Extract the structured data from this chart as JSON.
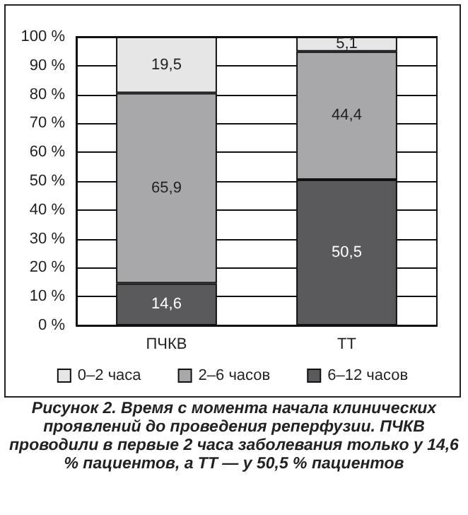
{
  "chart_data": {
    "type": "bar",
    "stacked": true,
    "categories": [
      "ПЧКВ",
      "ТТ"
    ],
    "series": [
      {
        "name": "6–12 часов",
        "color": "#5a5a5c",
        "values": [
          14.6,
          50.5
        ],
        "value_labels": [
          "14,6",
          "50,5"
        ]
      },
      {
        "name": "2–6 часов",
        "color": "#a8a8aa",
        "values": [
          65.9,
          44.4
        ],
        "value_labels": [
          "65,9",
          "44,4"
        ]
      },
      {
        "name": "0–2 часа",
        "color": "#e6e6e6",
        "values": [
          19.5,
          5.1
        ],
        "value_labels": [
          "19,5",
          "5,1"
        ]
      }
    ],
    "ylim": [
      0,
      100
    ],
    "yticks": [
      {
        "value": 0,
        "label": "0 %"
      },
      {
        "value": 10,
        "label": "10 %"
      },
      {
        "value": 20,
        "label": "20 %"
      },
      {
        "value": 30,
        "label": "30 %"
      },
      {
        "value": 40,
        "label": "40 %"
      },
      {
        "value": 50,
        "label": "50 %"
      },
      {
        "value": 60,
        "label": "60 %"
      },
      {
        "value": 70,
        "label": "70 %"
      },
      {
        "value": 80,
        "label": "80 %"
      },
      {
        "value": 90,
        "label": "90 %"
      },
      {
        "value": 100,
        "label": "100 %"
      }
    ],
    "grid": "y",
    "legend": "bottom",
    "annotations": [
      "Рисунок 2. Время с момента начала клинических проявлений до проведения реперфузии. ПЧКВ проводили в первые 2 часа заболевания только у 14,6 % пациентов, а ТТ — у 50,5 % пациентов"
    ]
  }
}
